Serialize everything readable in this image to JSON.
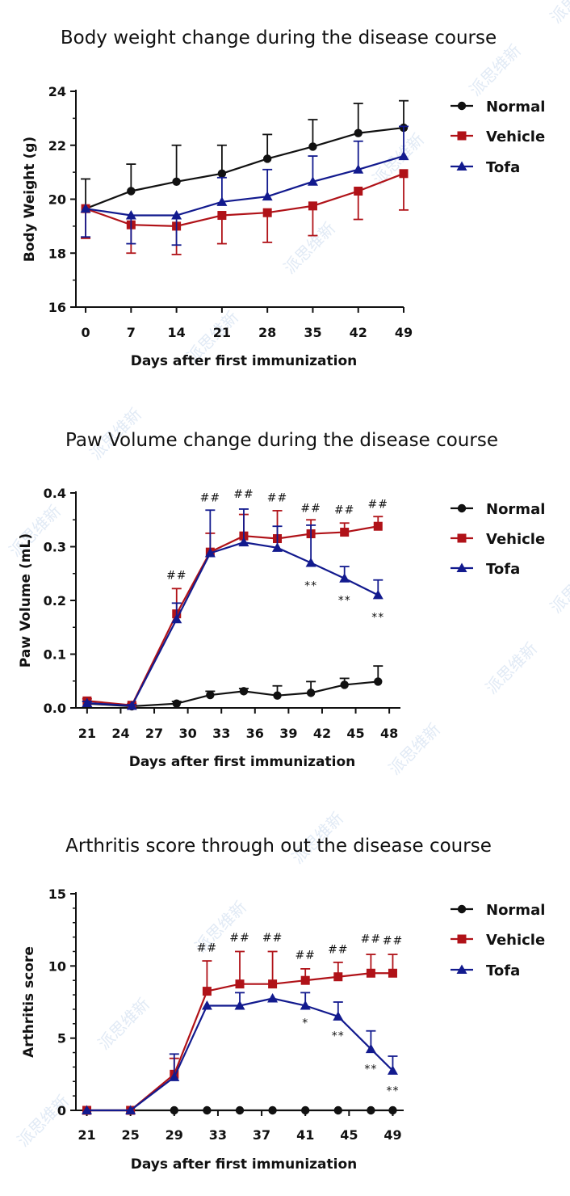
{
  "colors": {
    "Normal": "#111111",
    "Vehicle": "#b01218",
    "Tofa": "#121a8e"
  },
  "watermark": "派思维新",
  "legend_items": [
    "Normal",
    "Vehicle",
    "Tofa"
  ],
  "chart_data": [
    {
      "type": "line",
      "title": "Body weight change during the disease course",
      "xlabel": "Days after first immunization",
      "ylabel": "Body Weight (g)",
      "x": [
        0,
        7,
        14,
        21,
        28,
        35,
        42,
        49
      ],
      "xticks": [
        "0",
        "7",
        "14",
        "21",
        "28",
        "35",
        "42",
        "49"
      ],
      "xlim": [
        -1.5,
        49
      ],
      "ylim": [
        16,
        24
      ],
      "yticks": [
        "16",
        "18",
        "20",
        "22",
        "24"
      ],
      "legend_position": "right",
      "series": [
        {
          "name": "Normal",
          "marker": "circle",
          "values": [
            19.65,
            20.3,
            20.65,
            20.95,
            21.5,
            21.95,
            22.45,
            22.65
          ],
          "err": [
            1.1,
            1.0,
            1.35,
            1.05,
            0.9,
            1.0,
            1.1,
            1.0
          ]
        },
        {
          "name": "Vehicle",
          "marker": "square",
          "values": [
            19.65,
            19.05,
            19.0,
            19.4,
            19.5,
            19.75,
            20.3,
            20.95
          ],
          "err": [
            1.1,
            1.05,
            1.05,
            1.05,
            1.1,
            1.1,
            1.05,
            1.35
          ]
        },
        {
          "name": "Tofa",
          "marker": "triangle",
          "values": [
            19.65,
            19.4,
            19.4,
            19.9,
            20.1,
            20.65,
            21.1,
            21.6
          ],
          "err": [
            1.05,
            1.05,
            1.1,
            0.9,
            1.0,
            0.95,
            1.05,
            1.1
          ]
        }
      ],
      "annotations": []
    },
    {
      "type": "line",
      "title": "Paw Volume change during the disease course",
      "xlabel": "Days after first immunization",
      "ylabel": "Paw Volume (mL)",
      "x": [
        21,
        25,
        29,
        32,
        35,
        38,
        41,
        44,
        47
      ],
      "xtick_values": [
        21,
        24,
        27,
        30,
        33,
        36,
        39,
        42,
        45,
        48
      ],
      "xticks": [
        "21",
        "24",
        "27",
        "30",
        "33",
        "36",
        "39",
        "42",
        "45",
        "48"
      ],
      "xlim": [
        20,
        49
      ],
      "ylim": [
        0,
        0.4
      ],
      "yticks": [
        "0.0",
        "0.1",
        "0.2",
        "0.3",
        "0.4"
      ],
      "legend_position": "right",
      "series": [
        {
          "name": "Normal",
          "marker": "circle",
          "values": [
            0.008,
            0.003,
            0.008,
            0.024,
            0.031,
            0.023,
            0.028,
            0.043,
            0.049
          ],
          "err": [
            0.004,
            0.002,
            0.004,
            0.007,
            0.005,
            0.018,
            0.021,
            0.012,
            0.029
          ]
        },
        {
          "name": "Vehicle",
          "marker": "square",
          "values": [
            0.013,
            0.005,
            0.175,
            0.29,
            0.32,
            0.315,
            0.324,
            0.327,
            0.338
          ],
          "err": [
            0.004,
            0.003,
            0.047,
            0.035,
            0.04,
            0.052,
            0.026,
            0.017,
            0.018
          ]
        },
        {
          "name": "Tofa",
          "marker": "triangle",
          "values": [
            0.009,
            0.004,
            0.165,
            0.288,
            0.308,
            0.298,
            0.27,
            0.241,
            0.21
          ],
          "err": [
            0.003,
            0.002,
            0.03,
            0.08,
            0.062,
            0.04,
            0.07,
            0.022,
            0.028
          ]
        }
      ],
      "annotations": [
        {
          "x": 29,
          "y_label": 0.24,
          "text": "##"
        },
        {
          "x": 32,
          "y_label": 0.384,
          "text": "##"
        },
        {
          "x": 35,
          "y_label": 0.391,
          "text": "##"
        },
        {
          "x": 38,
          "y_label": 0.384,
          "text": "##"
        },
        {
          "x": 41,
          "y_label": 0.365,
          "text": "##"
        },
        {
          "x": 44,
          "y_label": 0.362,
          "text": "##"
        },
        {
          "x": 47,
          "y_label": 0.372,
          "text": "##"
        },
        {
          "x": 41,
          "y_label": 0.22,
          "text": "**"
        },
        {
          "x": 44,
          "y_label": 0.193,
          "text": "**"
        },
        {
          "x": 47,
          "y_label": 0.162,
          "text": "**"
        }
      ]
    },
    {
      "type": "line",
      "title": "Arthritis score through out the disease course",
      "xlabel": "Days after first immunization",
      "ylabel": "Arthritis score",
      "x": [
        21,
        25,
        29,
        32,
        35,
        38,
        41,
        44,
        47,
        49
      ],
      "xtick_values": [
        21,
        25,
        29,
        33,
        37,
        41,
        45,
        49
      ],
      "xticks": [
        "21",
        "25",
        "29",
        "33",
        "37",
        "41",
        "45",
        "49"
      ],
      "xlim": [
        20,
        50
      ],
      "ylim": [
        0,
        15
      ],
      "yticks": [
        "0",
        "5",
        "10",
        "15"
      ],
      "legend_position": "right",
      "series": [
        {
          "name": "Normal",
          "marker": "circle",
          "values": [
            0,
            0,
            0,
            0,
            0,
            0,
            0,
            0,
            0,
            0
          ],
          "err": [
            0,
            0,
            0,
            0,
            0,
            0,
            0,
            0,
            0,
            0
          ]
        },
        {
          "name": "Vehicle",
          "marker": "square",
          "values": [
            0,
            0,
            2.5,
            8.25,
            8.75,
            8.75,
            9.0,
            9.25,
            9.5,
            9.5
          ],
          "err": [
            0,
            0,
            1.1,
            2.1,
            2.25,
            2.25,
            0.8,
            1.0,
            1.3,
            1.3
          ]
        },
        {
          "name": "Tofa",
          "marker": "triangle",
          "values": [
            0,
            0,
            2.3,
            7.25,
            7.25,
            7.75,
            7.25,
            6.5,
            4.25,
            2.75
          ],
          "err": [
            0,
            0,
            1.6,
            0,
            0.9,
            0,
            0.9,
            1.0,
            1.25,
            1.0
          ]
        }
      ],
      "annotations": [
        {
          "x": 32,
          "y_label": 11.0,
          "text": "##"
        },
        {
          "x": 35,
          "y_label": 11.7,
          "text": "##"
        },
        {
          "x": 38,
          "y_label": 11.7,
          "text": "##"
        },
        {
          "x": 41,
          "y_label": 10.5,
          "text": "##"
        },
        {
          "x": 44,
          "y_label": 10.9,
          "text": "##"
        },
        {
          "x": 47,
          "y_label": 11.6,
          "text": "##"
        },
        {
          "x": 49,
          "y_label": 11.5,
          "text": "##"
        },
        {
          "x": 41,
          "y_label": 5.8,
          "text": "*"
        },
        {
          "x": 44,
          "y_label": 4.9,
          "text": "**"
        },
        {
          "x": 47,
          "y_label": 2.6,
          "text": "**"
        },
        {
          "x": 49,
          "y_label": 1.1,
          "text": "**"
        }
      ]
    }
  ]
}
